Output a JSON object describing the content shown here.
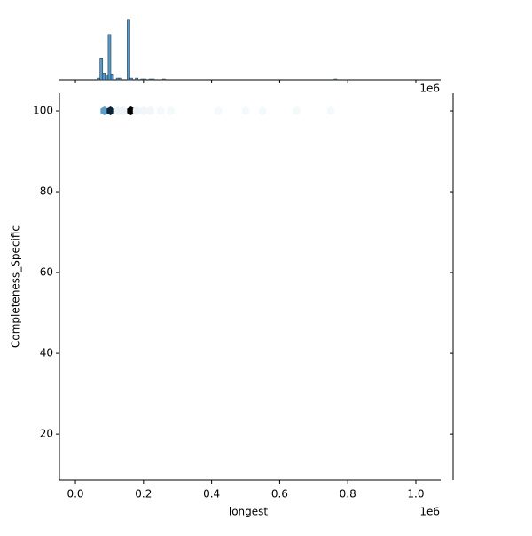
{
  "chart_data": {
    "type": "hexbin-joint",
    "x_label": "longest",
    "y_label": "Completeness_Specific",
    "x_offset_label": "1e6",
    "top_offset_label": "1e6",
    "color": "#1f77b4",
    "xlim": [
      -0.047,
      1.073
    ],
    "ylim": [
      8.6,
      104.4
    ],
    "xticks": [
      {
        "value": 0,
        "label": "0.0"
      },
      0.2,
      0.4,
      0.6,
      0.8,
      {
        "value": 1,
        "label": "1.0"
      }
    ],
    "yticks": [
      20,
      40,
      60,
      80,
      100
    ],
    "hexbins": {
      "x": [
        0.085,
        0.103,
        0.163,
        0.125,
        0.14,
        0.18,
        0.2,
        0.22,
        0.25,
        0.28,
        0.42,
        0.5,
        0.55,
        0.65,
        0.75
      ],
      "y": [
        100,
        100,
        100,
        100,
        100,
        100,
        100,
        100,
        100,
        100,
        100,
        100,
        100,
        100,
        100
      ],
      "counts": [
        40,
        120,
        150,
        3,
        3,
        3,
        2,
        2,
        1,
        1,
        1,
        1,
        1,
        1,
        1
      ]
    },
    "top_histogram": {
      "bins": [
        0.064,
        0.072,
        0.08,
        0.088,
        0.096,
        0.104,
        0.112,
        0.12,
        0.128,
        0.136,
        0.144,
        0.152,
        0.16,
        0.168,
        0.176,
        0.184,
        0.192,
        0.2,
        0.208,
        0.216,
        0.224,
        0.232,
        0.24,
        0.248,
        0.256,
        0.264,
        0.272,
        0.28,
        0.288,
        0.76,
        0.768
      ],
      "counts": [
        2,
        26,
        8,
        6,
        54,
        7,
        0,
        2,
        2,
        0,
        0,
        72,
        2,
        0,
        2,
        0,
        1,
        1,
        0,
        1,
        1,
        0,
        0,
        0,
        1,
        0,
        0,
        0,
        0,
        1
      ],
      "ylim": [
        0,
        76
      ]
    }
  }
}
